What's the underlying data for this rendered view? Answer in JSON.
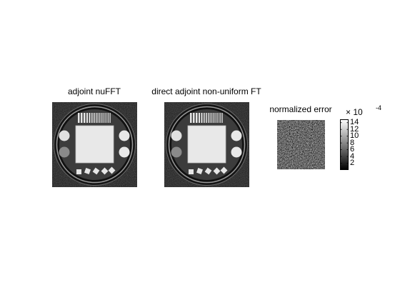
{
  "panels": [
    {
      "title": "adjoint nuFFT"
    },
    {
      "title": "direct adjoint non-uniform FT"
    },
    {
      "title": "normalized error"
    }
  ],
  "colorbar": {
    "multiplier_base": "× 10",
    "multiplier_exponent": "-4",
    "ticks": [
      "14",
      "12",
      "10",
      "8",
      "6",
      "4",
      "2"
    ],
    "tick_values": [
      14,
      12,
      10,
      8,
      6,
      4,
      2
    ],
    "range": [
      0,
      15
    ],
    "colormap": "gray"
  }
}
